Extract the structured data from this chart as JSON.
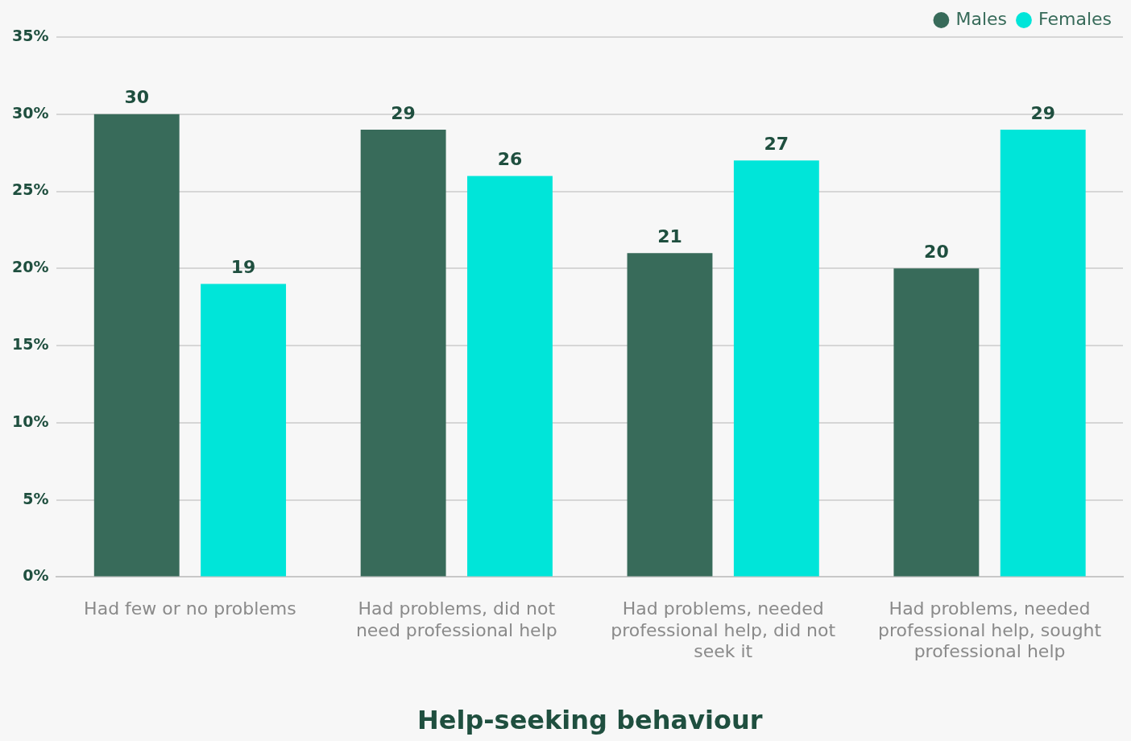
{
  "chart_data": {
    "type": "bar",
    "xlabel": "Help-seeking behaviour",
    "categories": [
      "Had few or no problems",
      "Had problems, did not need professional help",
      "Had problems, needed professional help, did not seek it",
      "Had problems, needed professional help, sought professional help"
    ],
    "series": [
      {
        "name": "Males",
        "color": "#386b5a",
        "values": [
          30,
          29,
          21,
          20
        ]
      },
      {
        "name": "Females",
        "color": "#00e5d9",
        "values": [
          19,
          26,
          27,
          29
        ]
      }
    ],
    "ylim": [
      0,
      35
    ],
    "yticks": [
      {
        "value": 0,
        "label": "0%"
      },
      {
        "value": 5,
        "label": "5%"
      },
      {
        "value": 10,
        "label": "10%"
      },
      {
        "value": 15,
        "label": "15%"
      },
      {
        "value": 20,
        "label": "20%"
      },
      {
        "value": 25,
        "label": "25%"
      },
      {
        "value": 30,
        "label": "30%"
      },
      {
        "value": 35,
        "label": "35%"
      }
    ],
    "grid": "y",
    "legend": "top right",
    "data_labels": true
  }
}
